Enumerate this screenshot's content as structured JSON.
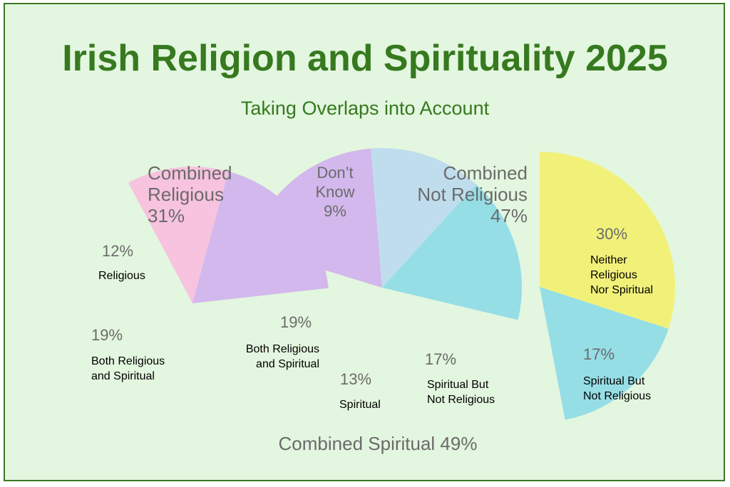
{
  "title": "Irish Religion and Spirituality 2025",
  "subtitle": "Taking Overlaps into Account",
  "chart_data": [
    {
      "type": "pie",
      "group": "Combined Religious",
      "group_label": [
        "Combined",
        "Religious",
        "31%"
      ],
      "total": 31,
      "slices": [
        {
          "label": [
            "Religious"
          ],
          "value": 12,
          "value_label": "12%",
          "color": "#f7c3df"
        },
        {
          "label": [
            "Both Religious",
            "and Spiritual"
          ],
          "value": 19,
          "value_label": "19%",
          "color": "#d2b8ec"
        }
      ]
    },
    {
      "type": "pie",
      "group": "Combined Spiritual",
      "group_label": [
        "Combined Spiritual  49%"
      ],
      "total": 49,
      "slices": [
        {
          "label": [
            "Both Religious",
            "and Spiritual"
          ],
          "value": 19,
          "value_label": "19%",
          "color": "#d2b8ec"
        },
        {
          "label": [
            "Spiritual"
          ],
          "value": 13,
          "value_label": "13%",
          "color": "#c0ddee"
        },
        {
          "label": [
            "Spiritual But",
            "Not Religious"
          ],
          "value": 17,
          "value_label": "17%",
          "color": "#96dee6"
        }
      ]
    },
    {
      "type": "pie",
      "group": "Combined Not Religious",
      "group_label": [
        "Combined",
        "Not Religious",
        "47%"
      ],
      "total": 47,
      "slices": [
        {
          "label": [
            "Neither",
            "Religious",
            "Nor Spiritual"
          ],
          "value": 30,
          "value_label": "30%",
          "color": "#f1f17a"
        },
        {
          "label": [
            "Spiritual But",
            "Not Religious"
          ],
          "value": 17,
          "value_label": "17%",
          "color": "#96dee6"
        }
      ]
    },
    {
      "type": "annotation",
      "label": [
        "Don’t",
        "Know",
        "9%"
      ],
      "value": 9
    }
  ]
}
